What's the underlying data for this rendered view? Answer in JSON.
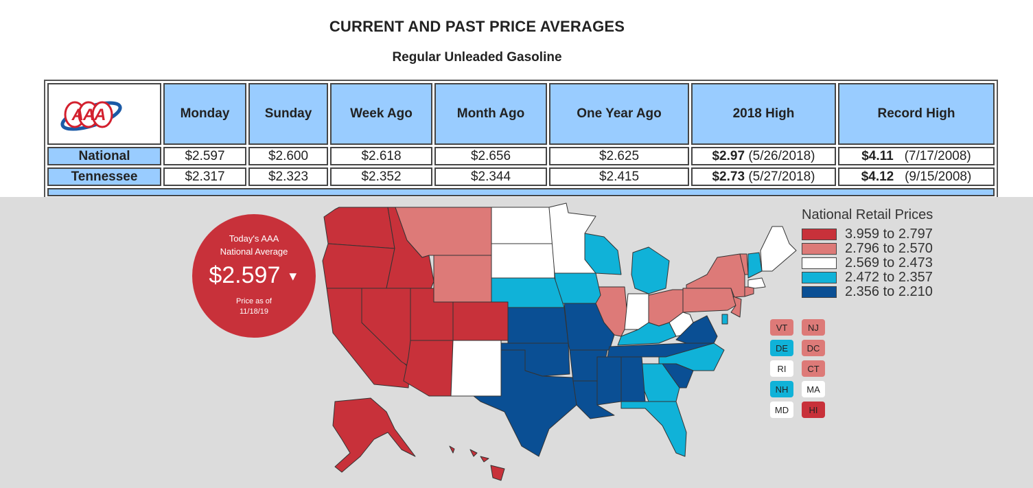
{
  "header": {
    "title": "CURRENT AND PAST PRICE AVERAGES",
    "subtitle": "Regular Unleaded Gasoline"
  },
  "table": {
    "logo_text": "AAA",
    "columns": [
      "Monday",
      "Sunday",
      "Week Ago",
      "Month Ago",
      "One Year Ago",
      "2018 High",
      "Record High"
    ],
    "rows": [
      {
        "label": "National",
        "monday": "$2.597",
        "sunday": "$2.600",
        "week_ago": "$2.618",
        "month_ago": "$2.656",
        "year_ago": "$2.625",
        "high_2018_value": "$2.97",
        "high_2018_date": "(5/26/2018)",
        "record_value": "$4.11",
        "record_date": "(7/17/2008)"
      },
      {
        "label": "Tennessee",
        "monday": "$2.317",
        "sunday": "$2.323",
        "week_ago": "$2.352",
        "month_ago": "$2.344",
        "year_ago": "$2.415",
        "high_2018_value": "$2.73",
        "high_2018_date": "(5/27/2018)",
        "record_value": "$4.12",
        "record_date": "(9/15/2008)"
      }
    ]
  },
  "national_average": {
    "label_line1": "Today's AAA",
    "label_line2": "National Average",
    "value": "$2.597",
    "trend": "down",
    "trend_icon": "▼",
    "asof_line1": "Price as of",
    "asof_line2": "11/18/19"
  },
  "legend": {
    "title": "National Retail Prices",
    "items": [
      {
        "range": "3.959 to 2.797",
        "color": "#c8313a"
      },
      {
        "range": "2.796 to 2.570",
        "color": "#dd7a78"
      },
      {
        "range": "2.569 to 2.473",
        "color": "#ffffff"
      },
      {
        "range": "2.472 to 2.357",
        "color": "#10b2d8"
      },
      {
        "range": "2.356 to 2.210",
        "color": "#0a4f94"
      }
    ]
  },
  "small_states": [
    {
      "abbr": "VT",
      "color": "#dd7a78"
    },
    {
      "abbr": "NJ",
      "color": "#dd7a78"
    },
    {
      "abbr": "DE",
      "color": "#10b2d8"
    },
    {
      "abbr": "DC",
      "color": "#dd7a78"
    },
    {
      "abbr": "RI",
      "color": "#ffffff"
    },
    {
      "abbr": "CT",
      "color": "#dd7a78"
    },
    {
      "abbr": "NH",
      "color": "#10b2d8"
    },
    {
      "abbr": "MA",
      "color": "#ffffff"
    },
    {
      "abbr": "MD",
      "color": "#ffffff"
    },
    {
      "abbr": "HI",
      "color": "#c8313a"
    }
  ]
}
